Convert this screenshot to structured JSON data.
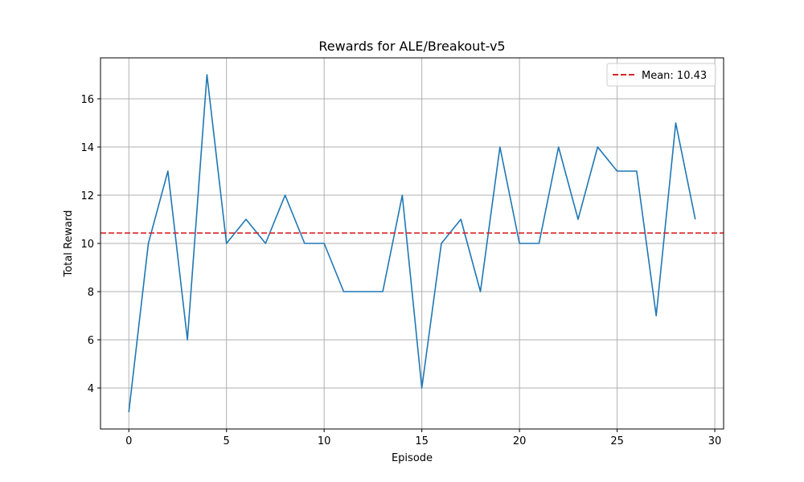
{
  "chart_data": {
    "type": "line",
    "title": "Rewards for ALE/Breakout-v5",
    "xlabel": "Episode",
    "ylabel": "Total Reward",
    "xlim": [
      -1.45,
      30.45
    ],
    "ylim": [
      2.3,
      17.7
    ],
    "xticks": [
      0,
      5,
      10,
      15,
      20,
      25,
      30
    ],
    "yticks": [
      4,
      6,
      8,
      10,
      12,
      14,
      16
    ],
    "grid": true,
    "legend_position": "top-right",
    "series": [
      {
        "values": [
          3,
          10,
          13,
          6,
          17,
          10,
          11,
          10,
          12,
          10,
          10,
          8,
          8,
          8,
          12,
          4,
          10,
          11,
          8,
          14,
          10,
          10,
          14,
          11,
          14,
          13,
          13,
          7,
          15,
          11
        ],
        "color": "#1f77b4"
      }
    ],
    "mean_line": {
      "value": 10.43,
      "label": "Mean: 10.43",
      "color": "#d62728",
      "style": "dashed"
    }
  }
}
